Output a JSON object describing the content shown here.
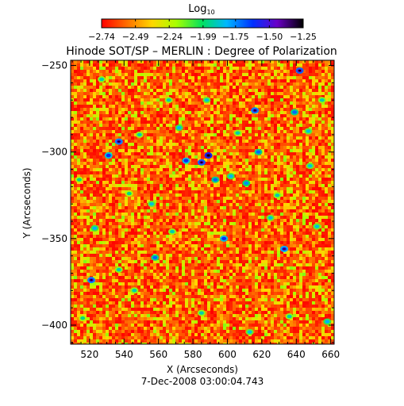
{
  "chart_data": {
    "type": "heatmap",
    "title": "Hinode SOT/SP – MERLIN : Degree of Polarization",
    "xlabel": "X (Arcseconds)",
    "ylabel": "Y (Arcseconds)",
    "date_label": "7-Dec-2008 03:00:04.743",
    "xlim": [
      509,
      662
    ],
    "ylim": [
      -411,
      -247
    ],
    "x_ticks": [
      520,
      540,
      560,
      580,
      600,
      620,
      640,
      660
    ],
    "y_ticks": [
      -250,
      -300,
      -350,
      -400
    ],
    "x_tick_labels": [
      "520",
      "540",
      "560",
      "580",
      "600",
      "620",
      "640",
      "660"
    ],
    "y_tick_labels": [
      "−250",
      "−300",
      "−350",
      "−400"
    ],
    "colorbar": {
      "label_main": "Log",
      "label_sub": "10",
      "range": [
        -2.74,
        -1.25
      ],
      "ticks": [
        -2.74,
        -2.49,
        -2.24,
        -1.99,
        -1.75,
        -1.5,
        -1.25
      ],
      "tick_labels": [
        "−2.74",
        "−2.49",
        "−2.24",
        "−1.99",
        "−1.75",
        "−1.50",
        "−1.25"
      ],
      "colormap": [
        "#ff0000",
        "#ff6a00",
        "#ffd700",
        "#a8ff00",
        "#00e060",
        "#00b8ff",
        "#0030ff",
        "#6a00c8",
        "#000000"
      ]
    },
    "hotspots": [
      {
        "x": 527,
        "y": -258,
        "v": -1.9
      },
      {
        "x": 531,
        "y": -302,
        "v": -1.6
      },
      {
        "x": 537,
        "y": -294,
        "v": -1.5
      },
      {
        "x": 543,
        "y": -324,
        "v": -1.95
      },
      {
        "x": 549,
        "y": -290,
        "v": -1.9
      },
      {
        "x": 556,
        "y": -330,
        "v": -1.85
      },
      {
        "x": 558,
        "y": -361,
        "v": -1.7
      },
      {
        "x": 566,
        "y": -270,
        "v": -1.9
      },
      {
        "x": 572,
        "y": -286,
        "v": -1.8
      },
      {
        "x": 576,
        "y": -305,
        "v": -1.6
      },
      {
        "x": 585,
        "y": -306,
        "v": -1.45
      },
      {
        "x": 589,
        "y": -302,
        "v": -1.35
      },
      {
        "x": 593,
        "y": -316,
        "v": -1.7
      },
      {
        "x": 588,
        "y": -270,
        "v": -1.85
      },
      {
        "x": 598,
        "y": -350,
        "v": -1.6
      },
      {
        "x": 602,
        "y": -314,
        "v": -1.8
      },
      {
        "x": 611,
        "y": -318,
        "v": -1.75
      },
      {
        "x": 616,
        "y": -276,
        "v": -1.5
      },
      {
        "x": 618,
        "y": -300,
        "v": -1.7
      },
      {
        "x": 629,
        "y": -325,
        "v": -1.9
      },
      {
        "x": 633,
        "y": -356,
        "v": -1.55
      },
      {
        "x": 639,
        "y": -277,
        "v": -1.7
      },
      {
        "x": 642,
        "y": -253,
        "v": -1.45
      },
      {
        "x": 648,
        "y": -308,
        "v": -1.85
      },
      {
        "x": 655,
        "y": -270,
        "v": -1.9
      },
      {
        "x": 652,
        "y": -343,
        "v": -1.85
      },
      {
        "x": 514,
        "y": -316,
        "v": -1.95
      },
      {
        "x": 523,
        "y": -344,
        "v": -1.8
      },
      {
        "x": 521,
        "y": -374,
        "v": -1.5
      },
      {
        "x": 516,
        "y": -396,
        "v": -1.95
      },
      {
        "x": 546,
        "y": -380,
        "v": -1.9
      },
      {
        "x": 585,
        "y": -393,
        "v": -1.9
      },
      {
        "x": 613,
        "y": -404,
        "v": -1.85
      },
      {
        "x": 636,
        "y": -395,
        "v": -1.9
      },
      {
        "x": 658,
        "y": -398,
        "v": -1.8
      },
      {
        "x": 568,
        "y": -346,
        "v": -1.9
      },
      {
        "x": 606,
        "y": -289,
        "v": -1.9
      },
      {
        "x": 625,
        "y": -338,
        "v": -1.85
      },
      {
        "x": 537,
        "y": -368,
        "v": -1.9
      },
      {
        "x": 647,
        "y": -288,
        "v": -1.85
      }
    ]
  }
}
